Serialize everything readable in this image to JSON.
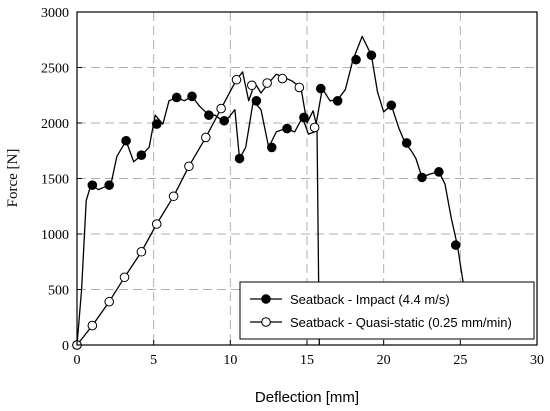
{
  "chart_data": {
    "type": "line",
    "xlabel": "Deflection [mm]",
    "ylabel": "Force [N]",
    "xlim": [
      0,
      30
    ],
    "ylim": [
      0,
      3000
    ],
    "xticks": [
      0,
      5,
      10,
      15,
      20,
      25,
      30
    ],
    "yticks": [
      0,
      500,
      1000,
      1500,
      2000,
      2500,
      3000
    ],
    "grid": true,
    "legend_position": "bottom-right",
    "series": [
      {
        "name": "Seatback - Impact (4.4 m/s)",
        "marker": "filled-circle",
        "color": "#000000",
        "x": [
          0,
          0.3,
          0.6,
          0.9,
          1.4,
          1.9,
          2.2,
          2.6,
          3.2,
          3.7,
          4.2,
          4.7,
          5.1,
          5.6,
          6.0,
          6.5,
          7.0,
          7.5,
          8.0,
          8.6,
          9.0,
          9.5,
          9.9,
          10.3,
          10.6,
          11.0,
          11.5,
          12.0,
          12.5,
          13.0,
          13.6,
          14.2,
          14.7,
          15.1,
          15.5,
          16.0,
          16.5,
          17.0,
          17.5,
          18.0,
          18.6,
          19.2,
          19.6,
          20.0,
          20.5,
          21.0,
          21.4,
          21.8,
          22.1,
          22.5,
          23.0,
          23.6,
          24.0,
          24.4,
          24.8,
          25.2,
          25.6
        ],
        "y": [
          0,
          500,
          1300,
          1440,
          1400,
          1430,
          1440,
          1700,
          1840,
          1650,
          1710,
          1780,
          2070,
          1990,
          2200,
          2230,
          2200,
          2240,
          2150,
          2070,
          2070,
          2020,
          2050,
          2120,
          1680,
          1780,
          2200,
          2120,
          1780,
          1920,
          1950,
          1920,
          2050,
          1900,
          1920,
          2310,
          2200,
          2210,
          2300,
          2570,
          2780,
          2610,
          2280,
          2100,
          2160,
          1950,
          1820,
          1750,
          1680,
          1510,
          1540,
          1560,
          1450,
          1150,
          900,
          550,
          350
        ]
      },
      {
        "name": "Seatback - Quasi-static (0.25 mm/min)",
        "marker": "open-circle",
        "color": "#000000",
        "x": [
          0,
          1.0,
          2.1,
          3.1,
          4.2,
          5.2,
          6.3,
          7.3,
          8.4,
          9.4,
          10.4,
          10.8,
          11.2,
          11.6,
          12.0,
          12.5,
          13.0,
          13.5,
          14.0,
          14.6,
          15.0,
          15.4,
          15.65,
          15.8
        ],
        "y": [
          0,
          175,
          390,
          610,
          840,
          1090,
          1340,
          1610,
          1870,
          2130,
          2390,
          2460,
          2200,
          2360,
          2270,
          2360,
          2440,
          2410,
          2380,
          2320,
          2000,
          2110,
          1960,
          0
        ]
      }
    ],
    "markers": [
      {
        "series": 0,
        "x": [
          0,
          1.0,
          2.1,
          3.2,
          4.2,
          5.2,
          6.5,
          7.5,
          8.6,
          9.6,
          10.6,
          11.7,
          12.7,
          13.7,
          14.8,
          15.9,
          17.0,
          18.2,
          19.2,
          20.5,
          21.5,
          22.5,
          23.6,
          24.7
        ],
        "y": [
          0,
          1440,
          1440,
          1840,
          1710,
          1990,
          2230,
          2240,
          2070,
          2020,
          1680,
          2200,
          1780,
          1950,
          2050,
          2310,
          2200,
          2570,
          2610,
          2160,
          1820,
          1510,
          1560,
          900
        ]
      },
      {
        "series": 1,
        "x": [
          0,
          1.0,
          2.1,
          3.1,
          4.2,
          5.2,
          6.3,
          7.3,
          8.4,
          9.4,
          10.4,
          11.4,
          12.4,
          13.4,
          14.5,
          15.5
        ],
        "y": [
          0,
          175,
          390,
          610,
          840,
          1090,
          1340,
          1610,
          1870,
          2130,
          2390,
          2340,
          2360,
          2400,
          2320,
          1960
        ]
      }
    ]
  }
}
